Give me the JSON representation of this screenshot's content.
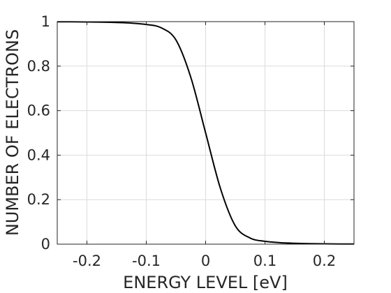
{
  "chart_data": {
    "type": "line",
    "xlabel": "ENERGY LEVEL  [eV]",
    "ylabel": "NUMBER OF ELECTRONS",
    "xlim": [
      -0.25,
      0.25
    ],
    "ylim": [
      0,
      1
    ],
    "xticks": [
      -0.2,
      -0.1,
      0,
      0.1,
      0.2
    ],
    "xtick_labels": [
      "-0.2",
      "-0.1",
      "0",
      "0.1",
      "0.2"
    ],
    "yticks": [
      0,
      0.2,
      0.4,
      0.6,
      0.8,
      1
    ],
    "ytick_labels": [
      "0",
      "0.2",
      "0.4",
      "0.6",
      "0.8",
      "1"
    ],
    "grid": true,
    "line_color": "#000000",
    "series": [
      {
        "x": [
          -0.25,
          -0.225,
          -0.2,
          -0.175,
          -0.15,
          -0.125,
          -0.1,
          -0.075,
          -0.05,
          -0.025,
          0,
          0.025,
          0.05,
          0.075,
          0.1,
          0.125,
          0.15,
          0.175,
          0.2,
          0.225,
          0.25
        ],
        "y": [
          0.9994,
          0.9991,
          0.9986,
          0.9976,
          0.9959,
          0.9932,
          0.9872,
          0.9725,
          0.9176,
          0.75,
          0.5,
          0.25,
          0.0824,
          0.0275,
          0.0128,
          0.0068,
          0.0041,
          0.0024,
          0.0014,
          0.0009,
          0.0006
        ]
      }
    ]
  }
}
